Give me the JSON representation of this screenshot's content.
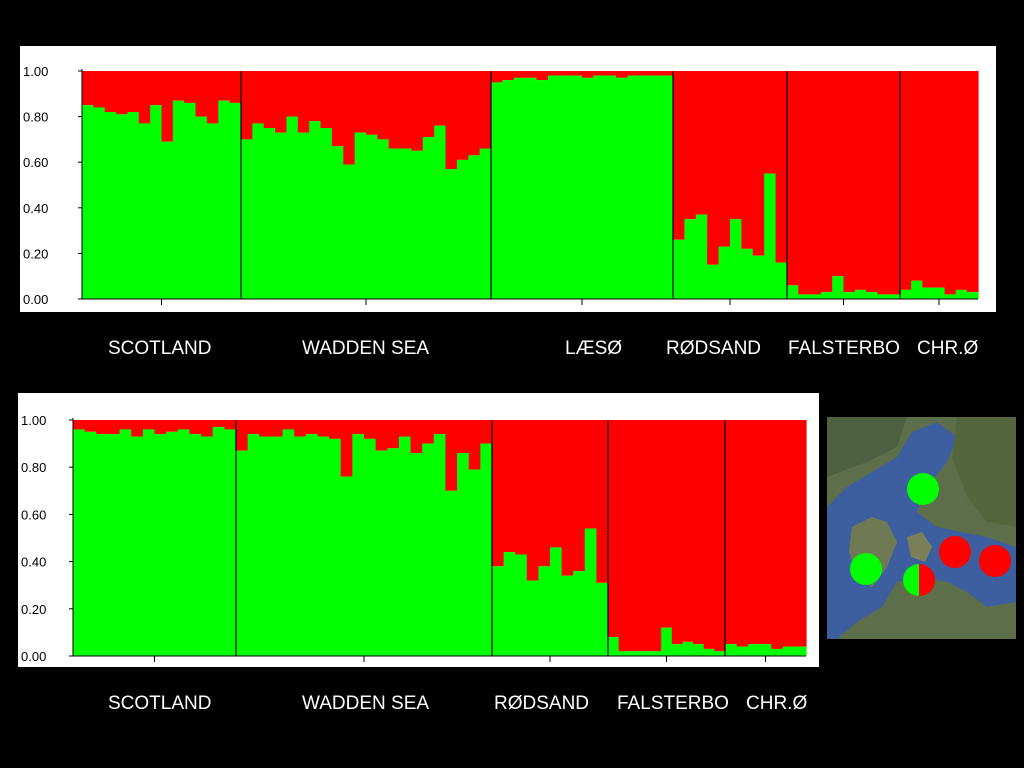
{
  "colors": {
    "background": "#000000",
    "green": "#00ff00",
    "red": "#ff0000"
  },
  "chart_data": [
    {
      "type": "bar",
      "stacked": true,
      "ylim": [
        0,
        1
      ],
      "y_ticks": [
        "0.00",
        "0.20",
        "0.40",
        "0.60",
        "0.80",
        "1.00"
      ],
      "populations": [
        {
          "name": "SCOTLAND",
          "green": [
            0.85,
            0.84,
            0.82,
            0.81,
            0.82,
            0.77,
            0.85,
            0.69,
            0.87,
            0.86,
            0.8,
            0.77,
            0.87,
            0.86
          ]
        },
        {
          "name": "WADDEN SEA",
          "green": [
            0.7,
            0.77,
            0.75,
            0.73,
            0.8,
            0.73,
            0.78,
            0.75,
            0.67,
            0.59,
            0.73,
            0.72,
            0.7,
            0.66,
            0.66,
            0.65,
            0.71,
            0.76,
            0.57,
            0.61,
            0.63,
            0.66
          ]
        },
        {
          "name": "LÆSØ",
          "green": [
            0.95,
            0.96,
            0.97,
            0.97,
            0.96,
            0.98,
            0.98,
            0.98,
            0.97,
            0.98,
            0.98,
            0.97,
            0.98,
            0.98,
            0.98,
            0.98
          ]
        },
        {
          "name": "RØDSAND",
          "green": [
            0.26,
            0.35,
            0.37,
            0.15,
            0.23,
            0.35,
            0.22,
            0.19,
            0.55,
            0.16
          ]
        },
        {
          "name": "FALSTERBO",
          "green": [
            0.06,
            0.02,
            0.02,
            0.03,
            0.1,
            0.03,
            0.04,
            0.03,
            0.02,
            0.02
          ]
        },
        {
          "name": "CHR.Ø",
          "green": [
            0.04,
            0.08,
            0.05,
            0.05,
            0.02,
            0.04,
            0.03
          ]
        }
      ]
    },
    {
      "type": "bar",
      "stacked": true,
      "ylim": [
        0,
        1
      ],
      "y_ticks": [
        "0.00",
        "0.20",
        "0.40",
        "0.60",
        "0.80",
        "1.00"
      ],
      "populations": [
        {
          "name": "SCOTLAND",
          "green": [
            0.96,
            0.95,
            0.94,
            0.94,
            0.96,
            0.93,
            0.96,
            0.94,
            0.95,
            0.96,
            0.94,
            0.93,
            0.97,
            0.96
          ]
        },
        {
          "name": "WADDEN SEA",
          "green": [
            0.87,
            0.94,
            0.93,
            0.93,
            0.96,
            0.93,
            0.94,
            0.93,
            0.92,
            0.76,
            0.94,
            0.92,
            0.87,
            0.88,
            0.93,
            0.86,
            0.9,
            0.94,
            0.7,
            0.86,
            0.79,
            0.9
          ]
        },
        {
          "name": "RØDSAND",
          "green": [
            0.38,
            0.44,
            0.43,
            0.32,
            0.38,
            0.46,
            0.34,
            0.36,
            0.54,
            0.31
          ]
        },
        {
          "name": "FALSTERBO",
          "green": [
            0.08,
            0.02,
            0.02,
            0.02,
            0.02,
            0.12,
            0.05,
            0.06,
            0.05,
            0.03,
            0.02
          ]
        },
        {
          "name": "CHR.Ø",
          "green": [
            0.05,
            0.04,
            0.05,
            0.05,
            0.03,
            0.04,
            0.04
          ]
        }
      ]
    }
  ],
  "labels_top": [
    "SCOTLAND",
    "WADDEN SEA",
    "LÆSØ",
    "RØDSAND",
    "FALSTERBO",
    "CHR.Ø"
  ],
  "labels_bottom": [
    "SCOTLAND",
    "WADDEN SEA",
    "RØDSAND",
    "FALSTERBO",
    "CHR.Ø"
  ],
  "map_markers": [
    "green",
    "green",
    "green-red",
    "red",
    "red"
  ]
}
